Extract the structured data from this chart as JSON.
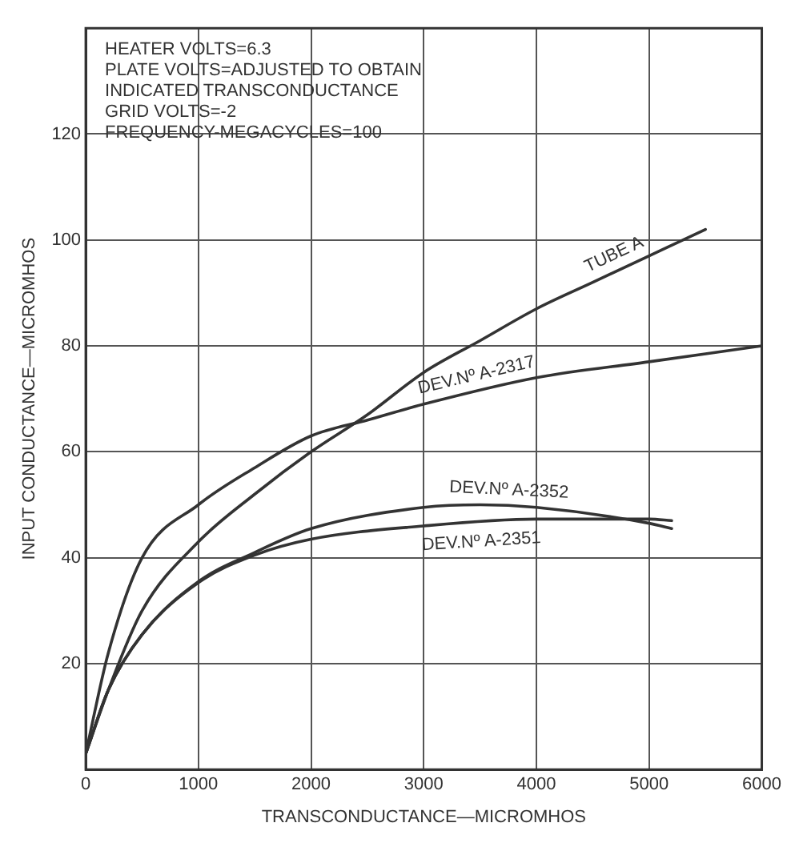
{
  "chart_data": {
    "type": "line",
    "xlabel": "TRANSCONDUCTANCE—MICROMHOS",
    "ylabel": "INPUT CONDUCTANCE—MICROMHOS",
    "annotations": [
      "HEATER VOLTS=6.3",
      "PLATE VOLTS=ADJUSTED TO OBTAIN INDICATED TRANSCONDUCTANCE",
      "GRID VOLTS=-2",
      "FREQUENCY-MEGACYCLES=100"
    ],
    "series": [
      {
        "name": "TUBE A",
        "color": "#333333",
        "x": [
          0,
          200,
          500,
          1000,
          1500,
          2000,
          2500,
          3000,
          3500,
          4000,
          4500,
          5000,
          5500
        ],
        "values": [
          3,
          15,
          30,
          43,
          52,
          60,
          67,
          75,
          81,
          87,
          92,
          97,
          102
        ]
      },
      {
        "name": "DEV.Nº A-2317",
        "color": "#333333",
        "x": [
          0,
          200,
          500,
          1000,
          1500,
          2000,
          2500,
          3000,
          4000,
          5000,
          6000
        ],
        "values": [
          3,
          22,
          40,
          50,
          57,
          63,
          66,
          69,
          74,
          77,
          80
        ]
      },
      {
        "name": "DEV.Nº A-2352",
        "color": "#333333",
        "x": [
          0,
          200,
          500,
          1000,
          1500,
          2000,
          3000,
          3500,
          4000,
          5000,
          5200
        ],
        "values": [
          3,
          15,
          25.5,
          35.5,
          41,
          45.5,
          49.5,
          50,
          49.5,
          46.5,
          45.5
        ]
      },
      {
        "name": "DEV.Nº A-2351",
        "color": "#333333",
        "x": [
          0,
          200,
          500,
          1000,
          1500,
          2000,
          3000,
          4000,
          5000,
          5200
        ],
        "values": [
          3,
          15,
          25.5,
          35.3,
          40.5,
          43.5,
          46,
          47.3,
          47.3,
          47
        ]
      }
    ],
    "xlim": [
      0,
      6000
    ],
    "xticks": [
      0,
      1000,
      2000,
      3000,
      4000,
      5000,
      6000
    ],
    "ylim": [
      0,
      140
    ],
    "yticks": [
      {
        "value": 0,
        "label": null
      },
      20,
      40,
      60,
      80,
      100,
      120
    ],
    "grid": true,
    "legend": false,
    "marker": "none",
    "line_style": "solid"
  }
}
